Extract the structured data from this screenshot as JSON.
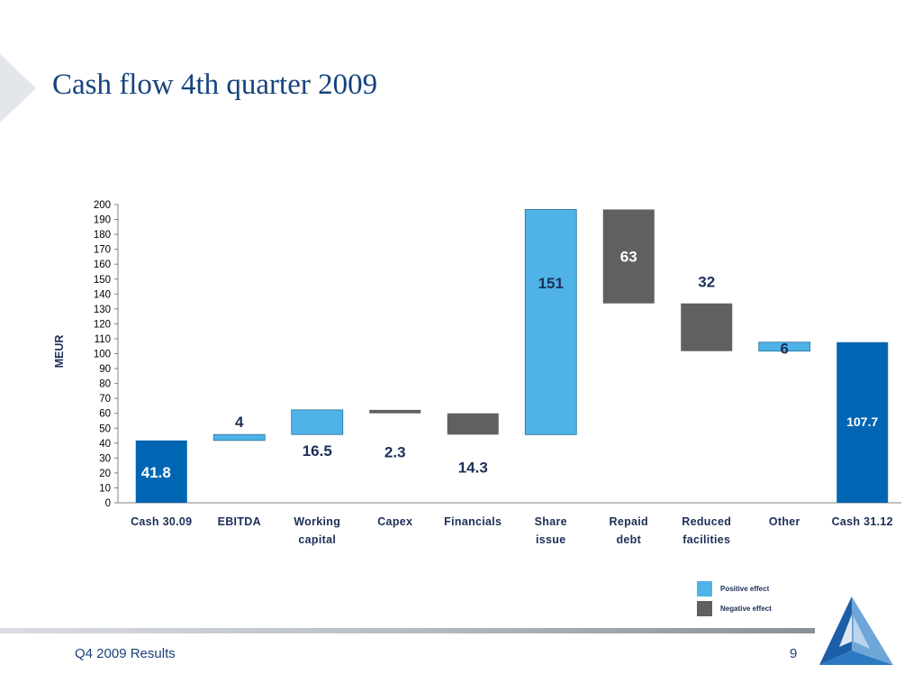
{
  "slide": {
    "title": "Cash flow 4th quarter 2009",
    "footer": "Q4 2009 Results",
    "page_number": "9"
  },
  "colors": {
    "total": "#0066b3",
    "positive": "#4fb3e8",
    "negative": "#606060",
    "title": "#16437e"
  },
  "legend": {
    "positive_label": "Positive effect",
    "negative_label": "Negative effect"
  },
  "chart_data": {
    "type": "bar",
    "subtype": "waterfall",
    "ylabel": "MEUR",
    "ylim": [
      0,
      200
    ],
    "ytick_step": 10,
    "grid": false,
    "legend_position": "bottom-right",
    "bars": [
      {
        "category": [
          "Cash 30.09"
        ],
        "kind": "total",
        "start": 0,
        "end": 41.8,
        "label": "41.8"
      },
      {
        "category": [
          "EBITDA"
        ],
        "kind": "positive",
        "start": 41.8,
        "end": 45.8,
        "label": "4"
      },
      {
        "category": [
          "Working",
          "capital"
        ],
        "kind": "positive",
        "start": 45.8,
        "end": 62.3,
        "label": "16.5"
      },
      {
        "category": [
          "Capex"
        ],
        "kind": "negative",
        "start": 62.3,
        "end": 60.0,
        "label": "2.3"
      },
      {
        "category": [
          "Financials"
        ],
        "kind": "negative",
        "start": 60.0,
        "end": 45.7,
        "label": "14.3"
      },
      {
        "category": [
          "Share",
          "issue"
        ],
        "kind": "positive",
        "start": 45.7,
        "end": 196.7,
        "label": "151"
      },
      {
        "category": [
          "Repaid",
          "debt"
        ],
        "kind": "negative",
        "start": 196.7,
        "end": 133.7,
        "label": "63"
      },
      {
        "category": [
          "Reduced",
          "facilities"
        ],
        "kind": "negative",
        "start": 133.7,
        "end": 101.7,
        "label": "32"
      },
      {
        "category": [
          "Other"
        ],
        "kind": "positive",
        "start": 101.7,
        "end": 107.7,
        "label": "6"
      },
      {
        "category": [
          "Cash 31.12"
        ],
        "kind": "total",
        "start": 0,
        "end": 107.7,
        "label": "107.7"
      }
    ]
  }
}
